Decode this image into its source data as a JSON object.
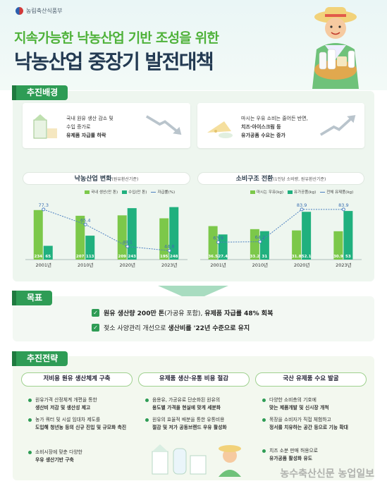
{
  "header": {
    "ministry": "농림축산식품부",
    "title_line1": "지속가능한 낙농산업 기반 조성을 위한",
    "title_line2": "낙농산업 중장기 발전대책"
  },
  "background": {
    "section_label": "추진배경",
    "card_left": {
      "line1": "국내 원유 생산 감소 및",
      "line2": "수입 증가로",
      "line3": "유제품 자급률 하락"
    },
    "card_right": {
      "line1": "마시는 우유 소비는 줄어든 반면,",
      "line2": "치즈·아이스크림 등",
      "line3": "유가공품 수요는 증가"
    }
  },
  "chart_data": [
    {
      "type": "bar",
      "title": "낙농산업 변화",
      "subtitle": "(원유환산기준)",
      "categories": [
        "2001년",
        "2010년",
        "2020년",
        "2023년"
      ],
      "series": [
        {
          "name": "국내 생산(만 톤)",
          "values": [
            234,
            207,
            209,
            195
          ],
          "color": "#7cc84a"
        },
        {
          "name": "수입(만 톤)",
          "values": [
            65,
            113,
            243,
            248
          ],
          "color": "#20b07e"
        },
        {
          "name": "자급률(%)",
          "values": [
            77.3,
            65.4,
            48.1,
            44.8
          ],
          "type": "line",
          "color": "#4a7fc0"
        }
      ]
    },
    {
      "type": "bar",
      "title": "소비구조 전환",
      "subtitle": "(1인당 소비량, 원유환산기준)",
      "categories": [
        "2001년",
        "2010년",
        "2020년",
        "2023년"
      ],
      "series": [
        {
          "name": "마시는 우유(kg)",
          "values": [
            36.5,
            33.2,
            31.8,
            30.9
          ],
          "color": "#7cc84a"
        },
        {
          "name": "유가공품(kg)",
          "values": [
            27.4,
            31,
            52.1,
            53
          ],
          "color": "#20b07e"
        },
        {
          "name": "전체 유제품(kg)",
          "values": [
            63.9,
            64.2,
            83.9,
            83.9
          ],
          "type": "line",
          "color": "#4a7fc0"
        }
      ]
    }
  ],
  "goal": {
    "section_label": "목표",
    "line1_bold": "원유 생산량 200만 톤",
    "line1_rest": "(가공유 포함),",
    "line1_bold2": "유제품 자급률 48% 회복",
    "line2_pre": "젖소 사양관리 개선으로",
    "line2_bold": "생산비를 '22년 수준으로 유지"
  },
  "strategy": {
    "section_label": "추진전략",
    "columns": [
      {
        "title": "저비용 원유 생산체계 구축",
        "items": [
          {
            "a": "원유가격 산정체계 개편을 통한",
            "b": "생산비 저감 및 생산성 제고"
          },
          {
            "a": "농가 쿼터 및 시설 임대차 제도를",
            "b": "도입해 청년농 등의 신규 진입 및 규모화 촉진"
          },
          {
            "a": "소비시장에 맞춘 다양한",
            "b": "우유 생산기반 구축"
          }
        ]
      },
      {
        "title": "유제품 생산·유통 비용 절감",
        "items": [
          {
            "a": "음용유, 가공유로 단순화된 원유의",
            "b": "용도별 가격을 현실에 맞게 세분화"
          },
          {
            "a": "원유의 효율적 배분을 통한 유통비용",
            "b": "절감 및 저가 공동브랜드 우유 활성화"
          }
        ]
      },
      {
        "title": "국산 유제품 수요 발굴",
        "items": [
          {
            "a": "다양한 소비층의 기호에",
            "b": "맞는 제품개발 및 신시장 개척"
          },
          {
            "a": "목장을 소비자가 직접 체험하고",
            "b": "정서를 치유하는 공간 등으로 기능 확대"
          },
          {
            "a": "치즈 소분 판매 허용으로",
            "b": "유가공품 활성화 유도"
          }
        ]
      }
    ]
  },
  "watermark": "농수축산신문 농업일보"
}
